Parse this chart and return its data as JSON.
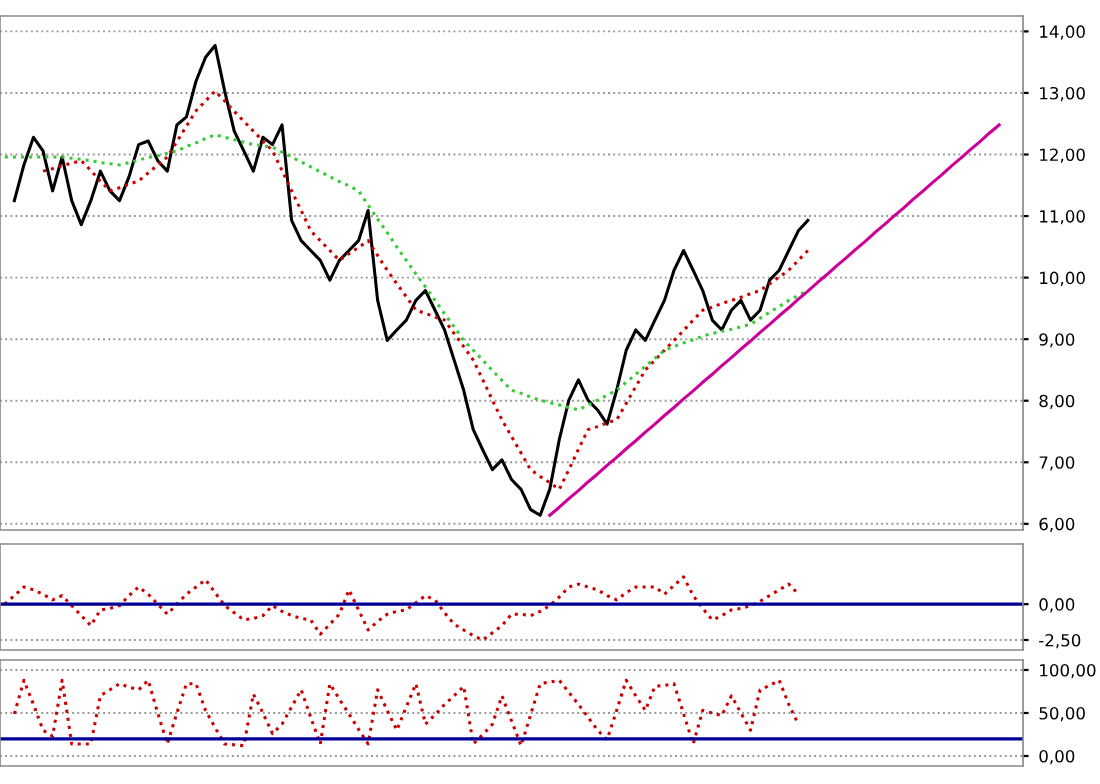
{
  "chart_data": [
    {
      "type": "line",
      "categories": [
        null,
        null,
        null,
        null,
        null,
        null,
        null,
        null,
        null,
        null,
        null,
        null,
        null,
        null,
        null,
        null,
        null,
        null,
        null,
        null,
        null,
        null,
        null,
        null,
        null,
        null,
        null,
        null,
        null,
        null,
        null,
        null,
        null,
        null,
        null,
        null,
        null,
        null,
        null,
        null,
        null,
        null,
        null,
        null,
        null,
        null,
        null,
        null,
        null,
        null,
        null,
        null,
        null,
        null,
        null,
        null,
        null,
        null,
        null,
        null,
        null,
        null,
        null,
        null,
        null,
        null,
        null,
        null,
        null,
        null,
        null,
        null,
        null,
        null,
        null,
        null,
        null,
        null,
        null,
        null,
        null,
        null,
        null,
        null,
        null,
        null,
        null,
        null,
        null,
        null,
        null,
        null,
        null,
        null,
        null,
        null,
        null,
        null,
        null,
        null,
        null,
        null,
        null,
        null,
        null,
        null,
        null
      ],
      "ylim": [
        5.9,
        14.25
      ],
      "yticks": [
        {
          "value": 6,
          "label": "6,00"
        },
        {
          "value": 7,
          "label": "7,00"
        },
        {
          "value": 8,
          "label": "8,00"
        },
        {
          "value": 9,
          "label": "9,00"
        },
        {
          "value": 10,
          "label": "10,00"
        },
        {
          "value": 11,
          "label": "11,00"
        },
        {
          "value": 12,
          "label": "12,00"
        },
        {
          "value": 13,
          "label": "13,00"
        },
        {
          "value": 14,
          "label": "14,00"
        }
      ],
      "tick_labels": "y",
      "grid": true,
      "series": [
        {
          "color": "#000000",
          "line_style": "solid",
          "values": [
            null,
            11.25,
            11.83,
            12.28,
            12.06,
            11.41,
            11.96,
            11.25,
            10.86,
            11.25,
            11.73,
            11.41,
            11.25,
            11.64,
            12.16,
            12.22,
            11.9,
            11.73,
            12.48,
            12.61,
            13.19,
            13.58,
            13.77,
            13.03,
            12.38,
            12.06,
            11.73,
            12.28,
            12.16,
            12.48,
            10.93,
            10.6,
            10.44,
            10.28,
            9.96,
            10.28,
            10.44,
            10.6,
            11.09,
            9.63,
            8.98,
            9.15,
            9.31,
            9.63,
            9.79,
            9.47,
            9.15,
            8.66,
            8.17,
            7.53,
            7.2,
            6.88,
            7.04,
            6.72,
            6.56,
            6.23,
            6.14,
            6.56,
            7.37,
            8.01,
            8.34,
            8.01,
            7.85,
            7.62,
            8.17,
            8.82,
            9.15,
            8.98,
            9.31,
            9.63,
            10.12,
            10.44,
            10.12,
            9.79,
            9.31,
            9.15,
            9.47,
            9.63,
            9.31,
            9.47,
            9.96,
            10.12,
            10.44,
            10.76,
            10.93,
            null,
            null,
            null,
            null,
            null,
            null,
            null,
            null,
            null,
            null,
            null,
            null,
            null,
            null,
            null,
            null,
            null,
            null,
            null,
            null,
            null,
            null
          ]
        },
        {
          "color": "#cc0000",
          "line_style": "dotted",
          "values": [
            null,
            null,
            null,
            null,
            11.73,
            11.77,
            11.82,
            11.86,
            11.9,
            11.74,
            11.57,
            11.41,
            11.46,
            11.52,
            11.57,
            11.7,
            11.83,
            11.96,
            12.21,
            12.46,
            12.71,
            12.87,
            13.03,
            12.87,
            12.7,
            12.54,
            12.38,
            12.22,
            12.06,
            11.74,
            11.41,
            11.09,
            10.76,
            10.6,
            10.44,
            10.28,
            10.39,
            10.49,
            10.6,
            10.36,
            10.12,
            9.9,
            9.69,
            9.47,
            9.42,
            9.36,
            9.31,
            9.09,
            8.88,
            8.66,
            8.34,
            8.01,
            7.69,
            7.42,
            7.15,
            6.88,
            6.77,
            6.67,
            6.56,
            6.88,
            7.21,
            7.53,
            7.58,
            7.64,
            7.69,
            7.96,
            8.23,
            8.5,
            8.66,
            8.82,
            8.98,
            9.14,
            9.31,
            9.47,
            9.52,
            9.58,
            9.63,
            9.68,
            9.74,
            9.79,
            9.9,
            10.01,
            10.12,
            10.28,
            10.44,
            null,
            null,
            null,
            null,
            null,
            null,
            null,
            null,
            null,
            null,
            null,
            null,
            null,
            null,
            null,
            null,
            null,
            null,
            null,
            null,
            null,
            null
          ]
        },
        {
          "color": "#33cc33",
          "line_style": "dotted",
          "values": [
            11.96,
            11.96,
            11.96,
            11.96,
            11.96,
            11.96,
            11.96,
            11.94,
            11.92,
            11.9,
            11.87,
            11.85,
            11.83,
            11.87,
            11.91,
            11.95,
            11.98,
            12.02,
            12.06,
            12.13,
            12.19,
            12.26,
            12.32,
            12.28,
            12.24,
            12.2,
            12.16,
            12.14,
            12.12,
            12.04,
            11.96,
            11.88,
            11.8,
            11.72,
            11.64,
            11.56,
            11.49,
            11.41,
            11.18,
            10.95,
            10.73,
            10.5,
            10.28,
            10.06,
            9.85,
            9.63,
            9.41,
            9.2,
            8.98,
            8.82,
            8.66,
            8.49,
            8.33,
            8.17,
            8.12,
            8.06,
            8.01,
            7.97,
            7.93,
            7.89,
            7.85,
            7.93,
            8.01,
            8.09,
            8.17,
            8.3,
            8.43,
            8.56,
            8.69,
            8.82,
            8.88,
            8.94,
            8.99,
            9.05,
            9.09,
            9.13,
            9.16,
            9.2,
            9.24,
            9.34,
            9.44,
            9.53,
            9.63,
            9.71,
            9.79,
            null,
            null,
            null,
            null,
            null,
            null,
            null,
            null,
            null,
            null,
            null,
            null,
            null,
            null,
            null,
            null,
            null,
            null,
            null,
            null,
            null,
            null
          ]
        },
        {
          "color": "#cc0099",
          "line_style": "solid",
          "values": [
            null,
            null,
            null,
            null,
            null,
            null,
            null,
            null,
            null,
            null,
            null,
            null,
            null,
            null,
            null,
            null,
            null,
            null,
            null,
            null,
            null,
            null,
            null,
            null,
            null,
            null,
            null,
            null,
            null,
            null,
            null,
            null,
            null,
            null,
            null,
            null,
            null,
            null,
            null,
            null,
            null,
            null,
            null,
            null,
            null,
            null,
            null,
            null,
            null,
            null,
            null,
            null,
            null,
            null,
            null,
            null,
            null,
            6.14,
            6.27,
            6.41,
            6.54,
            6.68,
            6.81,
            6.95,
            7.08,
            7.22,
            7.35,
            7.49,
            7.62,
            7.76,
            7.89,
            8.03,
            8.16,
            8.3,
            8.43,
            8.57,
            8.7,
            8.84,
            8.97,
            9.11,
            9.24,
            9.38,
            9.51,
            9.65,
            9.78,
            9.92,
            10.05,
            10.19,
            10.32,
            10.46,
            10.59,
            10.73,
            10.86,
            11.0,
            11.13,
            11.27,
            11.4,
            11.54,
            11.67,
            11.81,
            11.94,
            12.08,
            12.21,
            12.35,
            12.48,
            null,
            null
          ]
        }
      ]
    },
    {
      "type": "line",
      "categories": [
        null,
        null,
        null,
        null,
        null,
        null,
        null,
        null,
        null,
        null,
        null,
        null,
        null,
        null,
        null,
        null,
        null,
        null,
        null,
        null,
        null,
        null,
        null,
        null,
        null,
        null,
        null,
        null,
        null,
        null,
        null,
        null,
        null,
        null,
        null,
        null,
        null,
        null,
        null,
        null,
        null,
        null,
        null,
        null,
        null,
        null,
        null,
        null,
        null,
        null,
        null,
        null,
        null,
        null,
        null,
        null,
        null,
        null,
        null,
        null,
        null,
        null,
        null,
        null,
        null,
        null,
        null,
        null,
        null,
        null,
        null,
        null,
        null,
        null,
        null,
        null,
        null,
        null,
        null,
        null,
        null,
        null,
        null,
        null,
        null,
        null,
        null,
        null,
        null,
        null,
        null,
        null,
        null,
        null,
        null,
        null,
        null,
        null,
        null,
        null,
        null,
        null,
        null,
        null,
        null,
        null,
        null
      ],
      "ylim": [
        -3.2,
        4.2
      ],
      "yticks": [
        {
          "value": -2.5,
          "label": "-2,50"
        },
        {
          "value": 0,
          "label": "0,00"
        }
      ],
      "tick_labels": "y",
      "grid": true,
      "ref_lines": [
        {
          "axis": "y",
          "value": 0,
          "color": "#000099"
        }
      ],
      "series": [
        {
          "color": "#cc0000",
          "line_style": "dotted",
          "values": [
            0,
            0.6,
            1.2,
            1.0,
            0.7,
            0.3,
            0.6,
            -0.1,
            -0.8,
            -1.5,
            -0.4,
            -0.3,
            -0.1,
            0.6,
            1.2,
            0.7,
            0,
            -0.7,
            0,
            0.7,
            1.2,
            1.7,
            0.8,
            -0.1,
            -0.6,
            -1.1,
            -1.0,
            -0.8,
            -0.1,
            -0.5,
            -0.8,
            -1.0,
            -1.1,
            -2.1,
            -1.4,
            -0.7,
            1.0,
            -0.4,
            -1.8,
            -1.2,
            -0.7,
            -0.5,
            -0.4,
            0.1,
            0.6,
            0.3,
            -0.6,
            -1.4,
            -1.8,
            -2.2,
            -2.5,
            -2.0,
            -1.5,
            -0.7,
            -0.7,
            -0.8,
            -0.5,
            -0.1,
            0.5,
            1.2,
            1.4,
            1.2,
            1.0,
            0.6,
            0.3,
            0.8,
            1.2,
            1.2,
            1.2,
            0.7,
            1.3,
            1.9,
            0.6,
            -0.3,
            -1.1,
            -0.8,
            -0.4,
            -0.3,
            -0.1,
            0.2,
            0.6,
            1.0,
            1.4,
            0.7,
            null,
            null,
            null,
            null,
            null,
            null,
            null,
            null,
            null,
            null,
            null,
            null,
            null,
            null,
            null,
            null,
            null,
            null,
            null,
            null,
            null,
            null,
            null
          ]
        }
      ]
    },
    {
      "type": "line",
      "categories": [
        null,
        null,
        null,
        null,
        null,
        null,
        null,
        null,
        null,
        null,
        null,
        null,
        null,
        null,
        null,
        null,
        null,
        null,
        null,
        null,
        null,
        null,
        null,
        null,
        null,
        null,
        null,
        null,
        null,
        null,
        null,
        null,
        null,
        null,
        null,
        null,
        null,
        null,
        null,
        null,
        null,
        null,
        null,
        null,
        null,
        null,
        null,
        null,
        null,
        null,
        null,
        null,
        null,
        null,
        null,
        null,
        null,
        null,
        null,
        null,
        null,
        null,
        null,
        null,
        null,
        null,
        null,
        null,
        null,
        null,
        null,
        null,
        null,
        null,
        null,
        null,
        null,
        null,
        null,
        null,
        null,
        null,
        null,
        null,
        null,
        null,
        null,
        null,
        null,
        null,
        null,
        null,
        null,
        null,
        null,
        null,
        null,
        null,
        null,
        null,
        null,
        null,
        null,
        null,
        null,
        null,
        null
      ],
      "ylim": [
        -11.6,
        111.6
      ],
      "yticks": [
        {
          "value": 0,
          "label": "0,00"
        },
        {
          "value": 50,
          "label": "50,00"
        },
        {
          "value": 100,
          "label": "100,00"
        }
      ],
      "tick_labels": "y",
      "grid": true,
      "ref_lines": [
        {
          "axis": "y",
          "value": 20,
          "color": "#000099"
        }
      ],
      "series": [
        {
          "color": "#cc0000",
          "line_style": "dotted",
          "values": [
            null,
            49,
            88,
            60,
            30,
            23,
            88,
            14,
            14,
            14,
            70,
            77,
            84,
            80,
            77,
            88,
            50,
            14,
            50,
            84,
            84,
            53,
            33,
            14,
            13,
            12,
            72,
            50,
            26,
            37,
            57,
            77,
            45,
            14,
            84,
            66,
            49,
            31,
            14,
            77,
            53,
            30,
            57,
            84,
            37,
            48,
            60,
            70,
            81,
            14,
            25,
            37,
            70,
            41,
            12,
            48,
            84,
            86,
            88,
            74,
            60,
            45,
            30,
            19,
            53,
            88,
            70,
            53,
            81,
            82,
            84,
            49,
            14,
            53,
            50,
            47,
            70,
            50,
            30,
            77,
            82,
            88,
            60,
            37,
            null,
            null,
            null,
            null,
            null,
            null,
            null,
            null,
            null,
            null,
            null,
            null,
            null,
            null,
            null,
            null,
            null,
            null,
            null,
            null,
            null,
            null,
            null
          ]
        }
      ]
    }
  ]
}
